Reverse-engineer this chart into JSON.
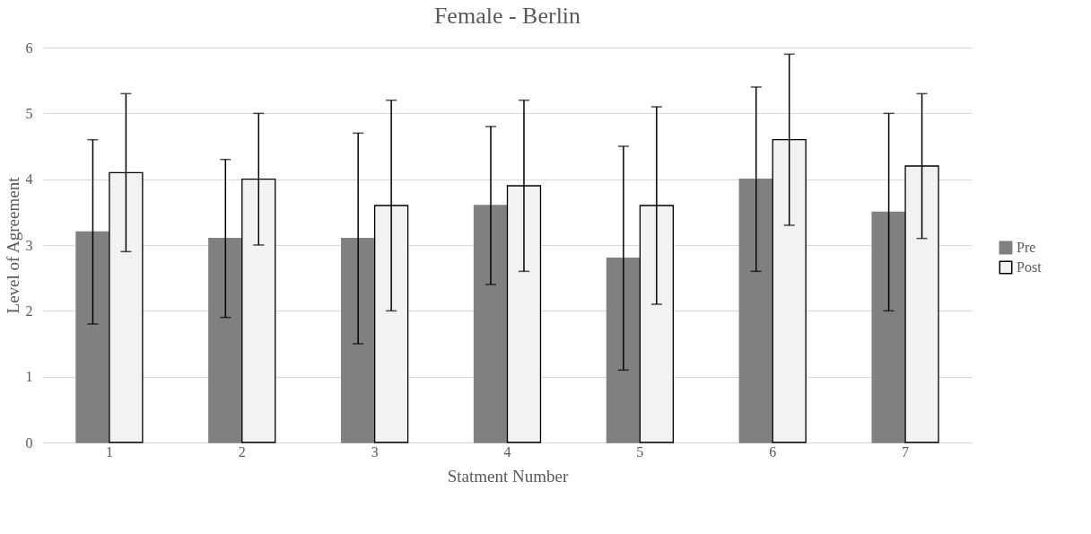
{
  "chart_data": {
    "type": "bar",
    "title": "Female - Berlin",
    "xlabel": "Statment Number",
    "ylabel": "Level of Agreement",
    "categories": [
      "1",
      "2",
      "3",
      "4",
      "5",
      "6",
      "7"
    ],
    "series": [
      {
        "name": "Pre",
        "color": "#808080",
        "values": [
          3.2,
          3.1,
          3.1,
          3.6,
          2.8,
          4.0,
          3.5
        ],
        "errors": [
          [
            1.8,
            4.6
          ],
          [
            1.9,
            4.3
          ],
          [
            1.5,
            4.7
          ],
          [
            2.4,
            4.8
          ],
          [
            1.1,
            4.5
          ],
          [
            2.6,
            5.4
          ],
          [
            2.0,
            5.0
          ]
        ]
      },
      {
        "name": "Post",
        "color": "#f2f2f2",
        "values": [
          4.1,
          4.0,
          3.6,
          3.9,
          3.6,
          4.6,
          4.2
        ],
        "errors": [
          [
            2.9,
            5.3
          ],
          [
            3.0,
            5.0
          ],
          [
            2.0,
            5.2
          ],
          [
            2.6,
            5.2
          ],
          [
            2.1,
            5.1
          ],
          [
            3.3,
            5.9
          ],
          [
            3.1,
            5.3
          ]
        ]
      }
    ],
    "ylim": [
      0,
      6
    ],
    "yticks": [
      0,
      1,
      2,
      3,
      4,
      5,
      6
    ],
    "grid": "y",
    "legend": "right"
  }
}
